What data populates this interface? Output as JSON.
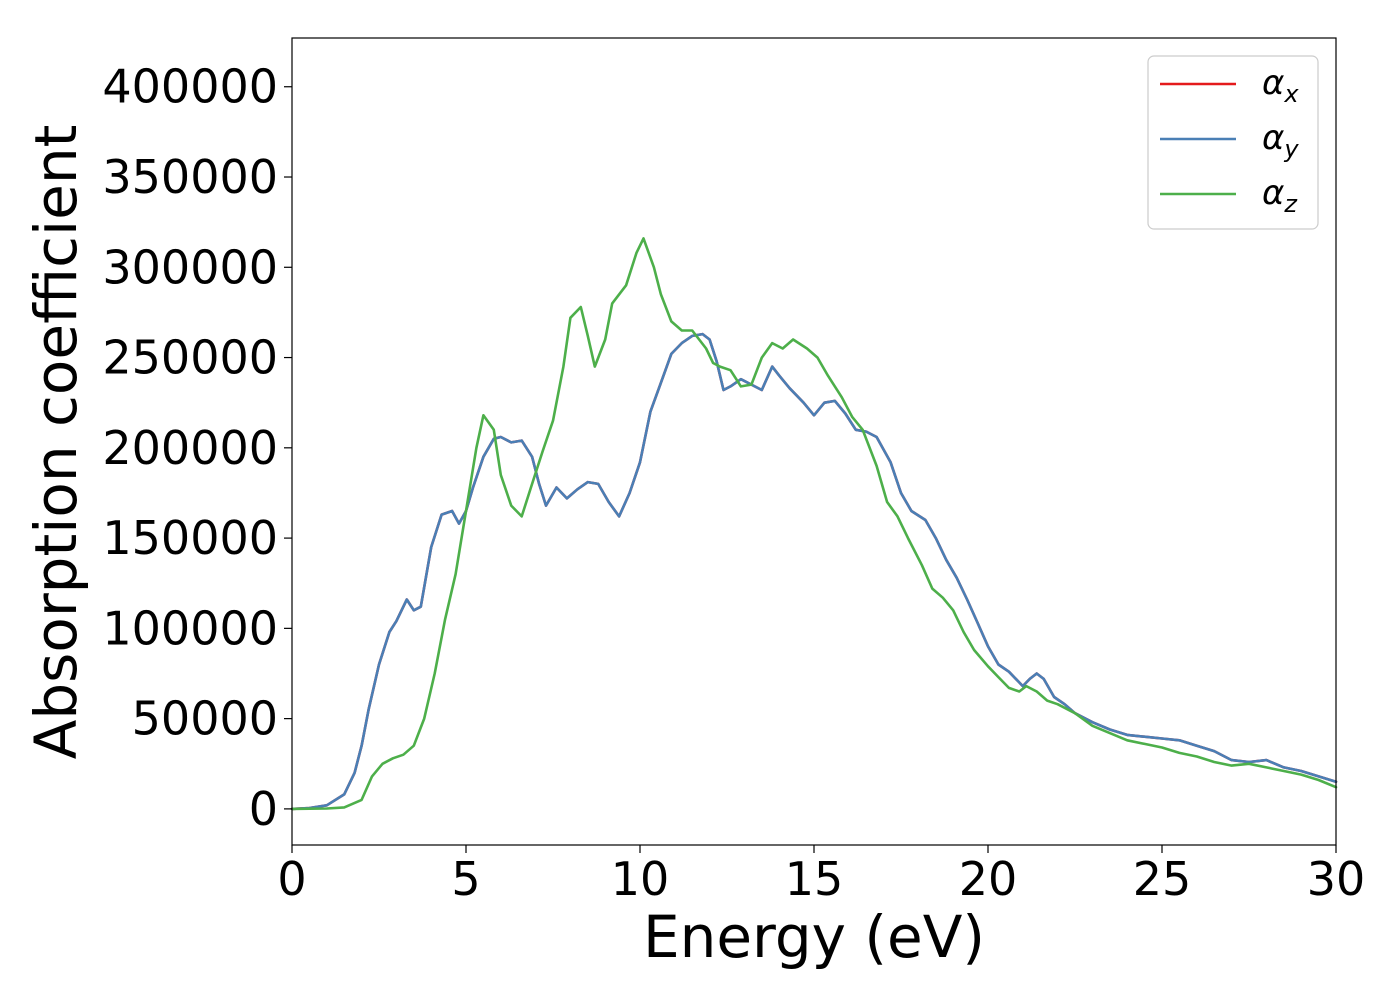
{
  "chart_data": {
    "type": "line",
    "xlabel": "Energy (eV)",
    "ylabel": "Absorption coefficient",
    "xlim": [
      0,
      30
    ],
    "ylim": [
      -20000,
      427000
    ],
    "xticks": [
      "0",
      "5",
      "10",
      "15",
      "20",
      "25",
      "30"
    ],
    "yticks": [
      "0",
      "50000",
      "100000",
      "150000",
      "200000",
      "250000",
      "300000",
      "350000",
      "400000"
    ],
    "grid": false,
    "legend_position": "top-right",
    "series": [
      {
        "name": "α",
        "subscript": "x",
        "color": "#e41a1c",
        "x": [
          0,
          0.5,
          1,
          1.5,
          1.8,
          2,
          2.2,
          2.5,
          2.8,
          3,
          3.3,
          3.5,
          3.7,
          4,
          4.3,
          4.6,
          4.8,
          5,
          5.2,
          5.5,
          5.8,
          6,
          6.3,
          6.6,
          6.9,
          7.1,
          7.3,
          7.6,
          7.9,
          8.2,
          8.5,
          8.8,
          9.1,
          9.4,
          9.7,
          10,
          10.3,
          10.6,
          10.9,
          11.2,
          11.5,
          11.8,
          12,
          12.2,
          12.4,
          12.6,
          12.9,
          13.2,
          13.5,
          13.8,
          14,
          14.3,
          14.7,
          15,
          15.3,
          15.6,
          15.9,
          16.2,
          16.5,
          16.8,
          17.2,
          17.5,
          17.8,
          18.2,
          18.5,
          18.8,
          19.1,
          19.4,
          19.7,
          20,
          20.3,
          20.6,
          21,
          21.2,
          21.4,
          21.6,
          21.9,
          22.2,
          22.5,
          23,
          23.5,
          24,
          24.5,
          25,
          25.5,
          26,
          26.5,
          27,
          27.5,
          28,
          28.5,
          29,
          29.5,
          30
        ],
        "y": [
          0,
          500,
          2000,
          8000,
          20000,
          35000,
          55000,
          80000,
          98000,
          104000,
          116000,
          110000,
          112000,
          145000,
          163000,
          165000,
          158000,
          165000,
          178000,
          195000,
          205000,
          206000,
          203000,
          204000,
          195000,
          180000,
          168000,
          178000,
          172000,
          177000,
          181000,
          180000,
          170000,
          162000,
          175000,
          192000,
          220000,
          236000,
          252000,
          258000,
          262000,
          263000,
          260000,
          248000,
          232000,
          234000,
          238000,
          235000,
          232000,
          245000,
          240000,
          233000,
          225000,
          218000,
          225000,
          226000,
          219000,
          210000,
          209000,
          206000,
          192000,
          175000,
          165000,
          160000,
          150000,
          138000,
          128000,
          116000,
          103000,
          90000,
          80000,
          76000,
          68000,
          72000,
          75000,
          72000,
          62000,
          58000,
          53000,
          48000,
          44000,
          41000,
          40000,
          39000,
          38000,
          35000,
          32000,
          27000,
          26000,
          27000,
          23000,
          21000,
          18000,
          15000
        ]
      },
      {
        "name": "α",
        "subscript": "y",
        "color": "#4a7fb5",
        "x": [
          0,
          0.5,
          1,
          1.5,
          1.8,
          2,
          2.2,
          2.5,
          2.8,
          3,
          3.3,
          3.5,
          3.7,
          4,
          4.3,
          4.6,
          4.8,
          5,
          5.2,
          5.5,
          5.8,
          6,
          6.3,
          6.6,
          6.9,
          7.1,
          7.3,
          7.6,
          7.9,
          8.2,
          8.5,
          8.8,
          9.1,
          9.4,
          9.7,
          10,
          10.3,
          10.6,
          10.9,
          11.2,
          11.5,
          11.8,
          12,
          12.2,
          12.4,
          12.6,
          12.9,
          13.2,
          13.5,
          13.8,
          14,
          14.3,
          14.7,
          15,
          15.3,
          15.6,
          15.9,
          16.2,
          16.5,
          16.8,
          17.2,
          17.5,
          17.8,
          18.2,
          18.5,
          18.8,
          19.1,
          19.4,
          19.7,
          20,
          20.3,
          20.6,
          21,
          21.2,
          21.4,
          21.6,
          21.9,
          22.2,
          22.5,
          23,
          23.5,
          24,
          24.5,
          25,
          25.5,
          26,
          26.5,
          27,
          27.5,
          28,
          28.5,
          29,
          29.5,
          30
        ],
        "y": [
          0,
          500,
          2000,
          8000,
          20000,
          35000,
          55000,
          80000,
          98000,
          104000,
          116000,
          110000,
          112000,
          145000,
          163000,
          165000,
          158000,
          165000,
          178000,
          195000,
          205000,
          206000,
          203000,
          204000,
          195000,
          180000,
          168000,
          178000,
          172000,
          177000,
          181000,
          180000,
          170000,
          162000,
          175000,
          192000,
          220000,
          236000,
          252000,
          258000,
          262000,
          263000,
          260000,
          248000,
          232000,
          234000,
          238000,
          235000,
          232000,
          245000,
          240000,
          233000,
          225000,
          218000,
          225000,
          226000,
          219000,
          210000,
          209000,
          206000,
          192000,
          175000,
          165000,
          160000,
          150000,
          138000,
          128000,
          116000,
          103000,
          90000,
          80000,
          76000,
          68000,
          72000,
          75000,
          72000,
          62000,
          58000,
          53000,
          48000,
          44000,
          41000,
          40000,
          39000,
          38000,
          35000,
          32000,
          27000,
          26000,
          27000,
          23000,
          21000,
          18000,
          15000
        ]
      },
      {
        "name": "α",
        "subscript": "z",
        "color": "#4daf4a",
        "x": [
          0,
          1,
          1.5,
          2,
          2.3,
          2.6,
          2.9,
          3.2,
          3.5,
          3.8,
          4.1,
          4.4,
          4.7,
          5,
          5.3,
          5.5,
          5.8,
          6,
          6.3,
          6.6,
          6.9,
          7.2,
          7.5,
          7.8,
          8,
          8.3,
          8.5,
          8.7,
          9,
          9.2,
          9.4,
          9.6,
          9.9,
          10.1,
          10.4,
          10.6,
          10.9,
          11.2,
          11.5,
          11.9,
          12.1,
          12.3,
          12.6,
          12.9,
          13.2,
          13.5,
          13.8,
          14.1,
          14.4,
          14.8,
          15.1,
          15.4,
          15.8,
          16.1,
          16.4,
          16.8,
          17.1,
          17.4,
          17.7,
          18.1,
          18.4,
          18.7,
          19,
          19.3,
          19.6,
          20,
          20.3,
          20.6,
          20.9,
          21.1,
          21.4,
          21.7,
          22,
          22.5,
          23,
          23.5,
          24,
          24.5,
          25,
          25.5,
          26,
          26.5,
          27,
          27.5,
          28,
          28.5,
          29,
          29.5,
          30
        ],
        "y": [
          0,
          200,
          800,
          5000,
          18000,
          25000,
          28000,
          30000,
          35000,
          50000,
          75000,
          105000,
          130000,
          165000,
          200000,
          218000,
          210000,
          185000,
          168000,
          162000,
          180000,
          198000,
          215000,
          245000,
          272000,
          278000,
          262000,
          245000,
          260000,
          280000,
          285000,
          290000,
          308000,
          316000,
          300000,
          285000,
          270000,
          265000,
          265000,
          255000,
          247000,
          245000,
          243000,
          234000,
          235000,
          250000,
          258000,
          255000,
          260000,
          255000,
          250000,
          240000,
          228000,
          217000,
          210000,
          190000,
          170000,
          162000,
          150000,
          135000,
          122000,
          117000,
          110000,
          98000,
          88000,
          79000,
          73000,
          67000,
          65000,
          68000,
          65000,
          60000,
          58000,
          53000,
          46000,
          42000,
          38000,
          36000,
          34000,
          31000,
          29000,
          26000,
          24000,
          25000,
          23000,
          21000,
          19000,
          16000,
          12000
        ]
      }
    ]
  }
}
